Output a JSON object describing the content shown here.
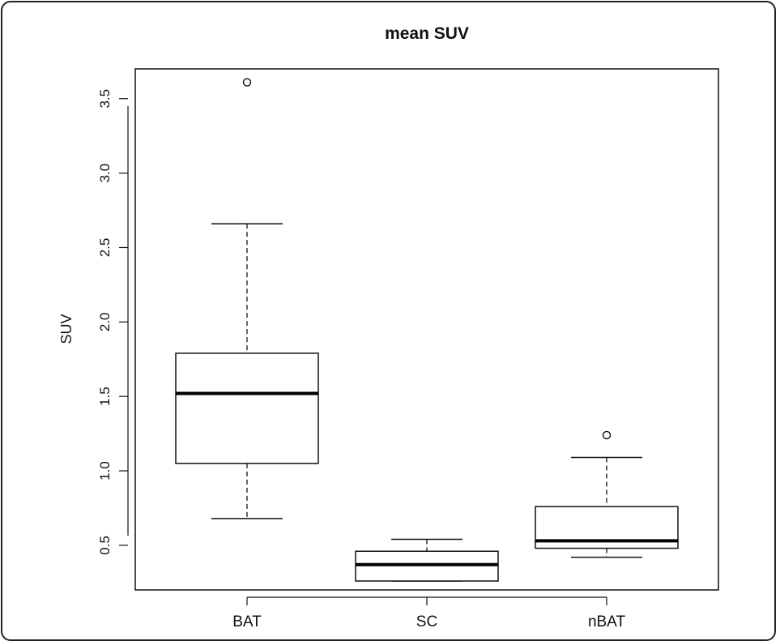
{
  "chart_data": {
    "type": "boxplot",
    "title": "mean SUV",
    "xlabel": "",
    "ylabel": "SUV",
    "ylim": [
      0.2,
      3.7
    ],
    "yticks": [
      "0.5",
      "1.0",
      "1.5",
      "2.0",
      "2.5",
      "3.0",
      "3.5"
    ],
    "yticks_values": [
      0.5,
      1.0,
      1.5,
      2.0,
      2.5,
      3.0,
      3.5
    ],
    "categories": [
      "BAT",
      "SC",
      "nBAT"
    ],
    "grid": false,
    "boxes": [
      {
        "name": "BAT",
        "whisker_low": 0.68,
        "q1": 1.05,
        "median": 1.52,
        "q3": 1.79,
        "whisker_high": 2.66,
        "outliers": [
          3.61
        ]
      },
      {
        "name": "SC",
        "whisker_low": 0.26,
        "q1": 0.26,
        "median": 0.37,
        "q3": 0.46,
        "whisker_high": 0.54,
        "outliers": []
      },
      {
        "name": "nBAT",
        "whisker_low": 0.42,
        "q1": 0.48,
        "median": 0.53,
        "q3": 0.76,
        "whisker_high": 1.09,
        "outliers": [
          1.24
        ]
      }
    ]
  }
}
